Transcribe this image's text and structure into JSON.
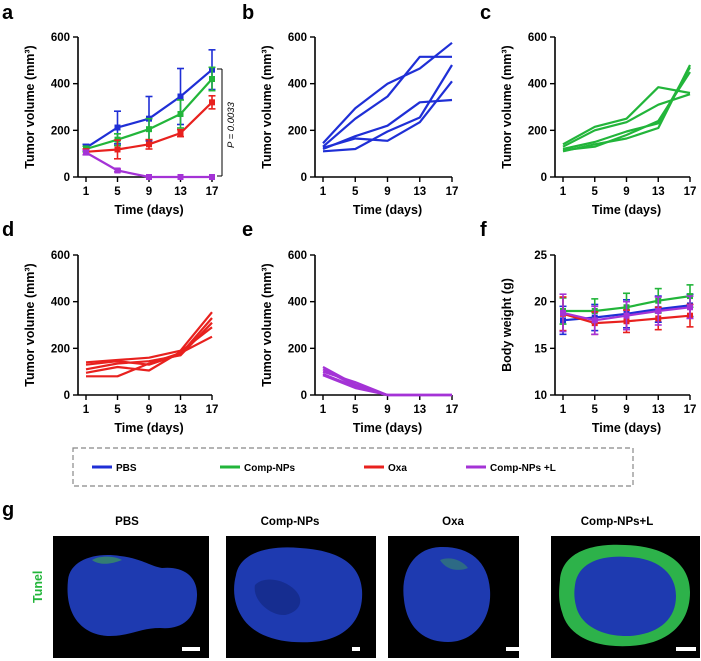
{
  "colors": {
    "pbs": "#1f2fd6",
    "comp": "#22b53a",
    "oxa": "#e8211e",
    "compl": "#a433d6",
    "axis": "#000000",
    "imgbg": "#000000",
    "tissue": "#1e3ab0",
    "green": "#3ccf5a",
    "scalebar": "#ffffff"
  },
  "legend": {
    "items": [
      {
        "label": "PBS",
        "color": "#1f2fd6"
      },
      {
        "label": "Comp-NPs",
        "color": "#22b53a"
      },
      {
        "label": "Oxa",
        "color": "#e8211e"
      },
      {
        "label": "Comp-NPs +L",
        "color": "#a433d6"
      }
    ]
  },
  "panel_g": {
    "letter": "g",
    "row_label": "Tunel",
    "images": [
      {
        "title": "PBS"
      },
      {
        "title": "Comp-NPs"
      },
      {
        "title": "Oxa"
      },
      {
        "title": "Comp-NPs+L"
      }
    ]
  },
  "chart_data": [
    {
      "panel": "a",
      "type": "line",
      "xlabel": "Time (days)",
      "ylabel": "Tumor volume (mm³)",
      "x": [
        1,
        5,
        9,
        13,
        17
      ],
      "xticks": [
        "1",
        "5",
        "9",
        "13",
        "17"
      ],
      "ylim": [
        0,
        600
      ],
      "yticks": [
        "0",
        "200",
        "400",
        "600"
      ],
      "annotation": "P = 0.0033",
      "series": [
        {
          "name": "PBS",
          "color": "#1f2fd6",
          "values": [
            125,
            212,
            250,
            345,
            460
          ],
          "err": [
            15,
            70,
            95,
            120,
            85
          ]
        },
        {
          "name": "Comp-NPs",
          "color": "#22b53a",
          "values": [
            120,
            160,
            205,
            270,
            420
          ],
          "err": [
            12,
            25,
            45,
            60,
            50
          ]
        },
        {
          "name": "Oxa",
          "color": "#e8211e",
          "values": [
            108,
            118,
            140,
            188,
            320
          ],
          "err": [
            12,
            40,
            20,
            15,
            28
          ]
        },
        {
          "name": "Comp-NPs +L",
          "color": "#a433d6",
          "values": [
            105,
            28,
            0,
            0,
            0
          ],
          "err": [
            10,
            6,
            0,
            0,
            0
          ]
        }
      ]
    },
    {
      "panel": "b",
      "type": "line",
      "xlabel": "Time (days)",
      "ylabel": "Tumor volume (mm³)",
      "x": [
        1,
        5,
        9,
        13,
        17
      ],
      "xticks": [
        "1",
        "5",
        "9",
        "13",
        "17"
      ],
      "ylim": [
        0,
        600
      ],
      "yticks": [
        "0",
        "200",
        "400",
        "600"
      ],
      "series": [
        {
          "name": "PBS",
          "color": "#1f2fd6",
          "values": [
            145,
            295,
            400,
            465,
            575
          ]
        },
        {
          "name": "PBS",
          "color": "#1f2fd6",
          "values": [
            130,
            250,
            345,
            515,
            515
          ]
        },
        {
          "name": "PBS",
          "color": "#1f2fd6",
          "values": [
            120,
            175,
            220,
            320,
            330
          ]
        },
        {
          "name": "PBS",
          "color": "#1f2fd6",
          "values": [
            110,
            120,
            195,
            255,
            480
          ]
        },
        {
          "name": "PBS",
          "color": "#1f2fd6",
          "values": [
            125,
            165,
            155,
            235,
            410
          ]
        }
      ]
    },
    {
      "panel": "c",
      "type": "line",
      "xlabel": "Time (days)",
      "ylabel": "Tumor volume (mm³)",
      "x": [
        1,
        5,
        9,
        13,
        17
      ],
      "xticks": [
        "1",
        "5",
        "9",
        "13",
        "17"
      ],
      "ylim": [
        0,
        600
      ],
      "yticks": [
        "0",
        "200",
        "400",
        "600"
      ],
      "series": [
        {
          "name": "Comp-NPs",
          "color": "#22b53a",
          "values": [
            140,
            215,
            250,
            385,
            360
          ]
        },
        {
          "name": "Comp-NPs",
          "color": "#22b53a",
          "values": [
            130,
            200,
            235,
            310,
            355
          ]
        },
        {
          "name": "Comp-NPs",
          "color": "#22b53a",
          "values": [
            120,
            150,
            195,
            230,
            470
          ]
        },
        {
          "name": "Comp-NPs",
          "color": "#22b53a",
          "values": [
            110,
            140,
            165,
            210,
            480
          ]
        },
        {
          "name": "Comp-NPs",
          "color": "#22b53a",
          "values": [
            115,
            130,
            180,
            240,
            450
          ]
        }
      ]
    },
    {
      "panel": "d",
      "type": "line",
      "xlabel": "Time (days)",
      "ylabel": "Tumor volume (mm³)",
      "x": [
        1,
        5,
        9,
        13,
        17
      ],
      "xticks": [
        "1",
        "5",
        "9",
        "13",
        "17"
      ],
      "ylim": [
        0,
        600
      ],
      "yticks": [
        "0",
        "200",
        "400",
        "600"
      ],
      "series": [
        {
          "name": "Oxa",
          "color": "#e8211e",
          "values": [
            140,
            150,
            160,
            190,
            355
          ]
        },
        {
          "name": "Oxa",
          "color": "#e8211e",
          "values": [
            130,
            145,
            130,
            175,
            330
          ]
        },
        {
          "name": "Oxa",
          "color": "#e8211e",
          "values": [
            110,
            135,
            145,
            170,
            310
          ]
        },
        {
          "name": "Oxa",
          "color": "#e8211e",
          "values": [
            80,
            80,
            135,
            180,
            250
          ]
        },
        {
          "name": "Oxa",
          "color": "#e8211e",
          "values": [
            95,
            120,
            105,
            185,
            290
          ]
        }
      ]
    },
    {
      "panel": "e",
      "type": "line",
      "xlabel": "Time (days)",
      "ylabel": "Tumor volume (mm³)",
      "x": [
        1,
        5,
        9,
        13,
        17
      ],
      "xticks": [
        "1",
        "5",
        "9",
        "13",
        "17"
      ],
      "ylim": [
        0,
        600
      ],
      "yticks": [
        "0",
        "200",
        "400",
        "600"
      ],
      "series": [
        {
          "name": "Comp-NPs +L",
          "color": "#a433d6",
          "values": [
            120,
            45,
            0,
            0,
            0
          ]
        },
        {
          "name": "Comp-NPs +L",
          "color": "#a433d6",
          "values": [
            110,
            40,
            0,
            0,
            0
          ]
        },
        {
          "name": "Comp-NPs +L",
          "color": "#a433d6",
          "values": [
            100,
            55,
            0,
            0,
            0
          ]
        },
        {
          "name": "Comp-NPs +L",
          "color": "#a433d6",
          "values": [
            90,
            35,
            0,
            0,
            0
          ]
        },
        {
          "name": "Comp-NPs +L",
          "color": "#a433d6",
          "values": [
            85,
            30,
            0,
            0,
            0
          ]
        }
      ]
    },
    {
      "panel": "f",
      "type": "line",
      "xlabel": "Time (days)",
      "ylabel": "Body weight (g)",
      "x": [
        1,
        5,
        9,
        13,
        17
      ],
      "xticks": [
        "1",
        "5",
        "9",
        "13",
        "17"
      ],
      "ylim": [
        10,
        25
      ],
      "yticks": [
        "10",
        "15",
        "20",
        "25"
      ],
      "series": [
        {
          "name": "PBS",
          "color": "#1f2fd6",
          "values": [
            18.0,
            18.3,
            18.7,
            19.2,
            19.6
          ],
          "err": [
            1.5,
            1.4,
            1.5,
            1.4,
            1.2
          ]
        },
        {
          "name": "Comp-NPs",
          "color": "#22b53a",
          "values": [
            19.0,
            19.0,
            19.4,
            20.1,
            20.6
          ],
          "err": [
            1.4,
            1.3,
            1.5,
            1.3,
            1.2
          ]
        },
        {
          "name": "Oxa",
          "color": "#e8211e",
          "values": [
            18.7,
            17.7,
            17.9,
            18.2,
            18.5
          ],
          "err": [
            1.8,
            1.2,
            1.2,
            1.2,
            1.2
          ]
        },
        {
          "name": "Comp-NPs +L",
          "color": "#a433d6",
          "values": [
            18.8,
            18.0,
            18.5,
            19.0,
            19.4
          ],
          "err": [
            2.0,
            1.5,
            1.5,
            1.5,
            1.2
          ]
        }
      ]
    }
  ]
}
